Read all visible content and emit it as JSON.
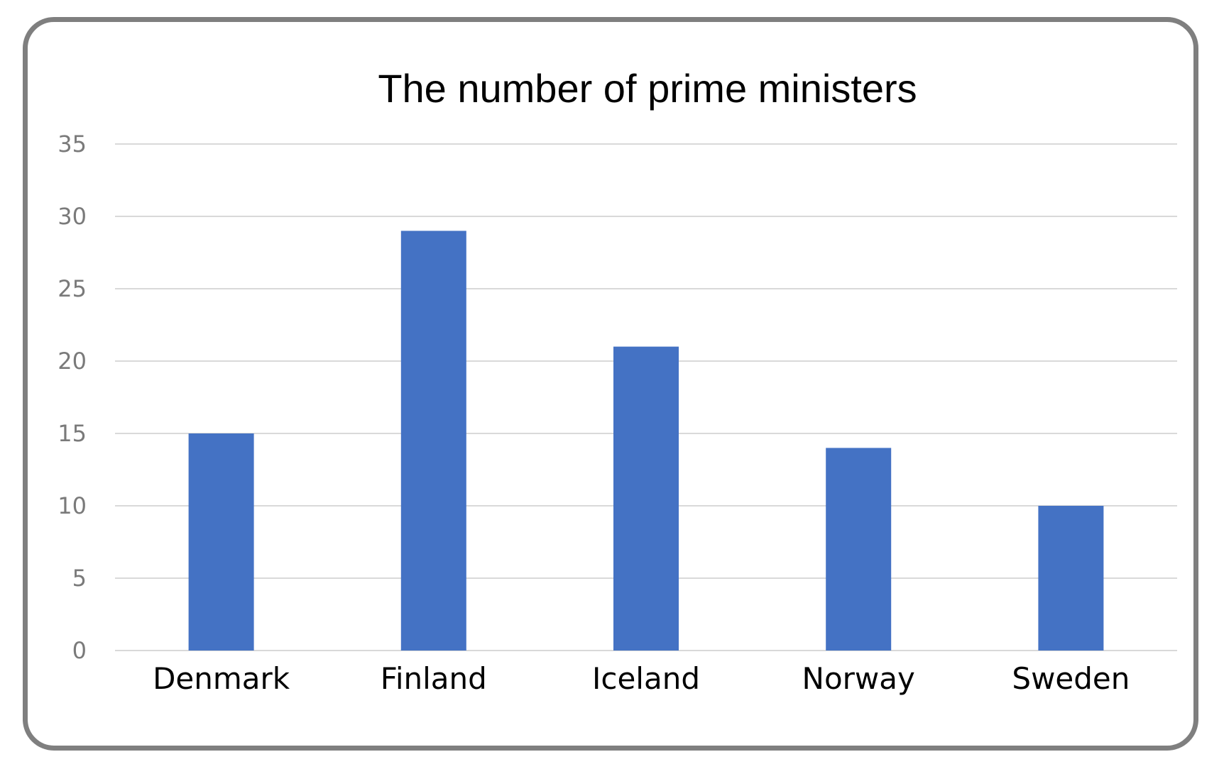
{
  "chart_data": {
    "type": "bar",
    "title": "The number of prime ministers",
    "xlabel": "",
    "ylabel": "",
    "categories": [
      "Denmark",
      "Finland",
      "Iceland",
      "Norway",
      "Sweden"
    ],
    "series": [
      {
        "values": [
          15,
          29,
          21,
          14,
          10
        ]
      }
    ],
    "ylim": [
      0,
      35
    ],
    "yticks": [
      0,
      5,
      10,
      15,
      20,
      25,
      30,
      35
    ],
    "grid": true,
    "legend": "none",
    "colors": {
      "bar": "#4472c4"
    }
  }
}
